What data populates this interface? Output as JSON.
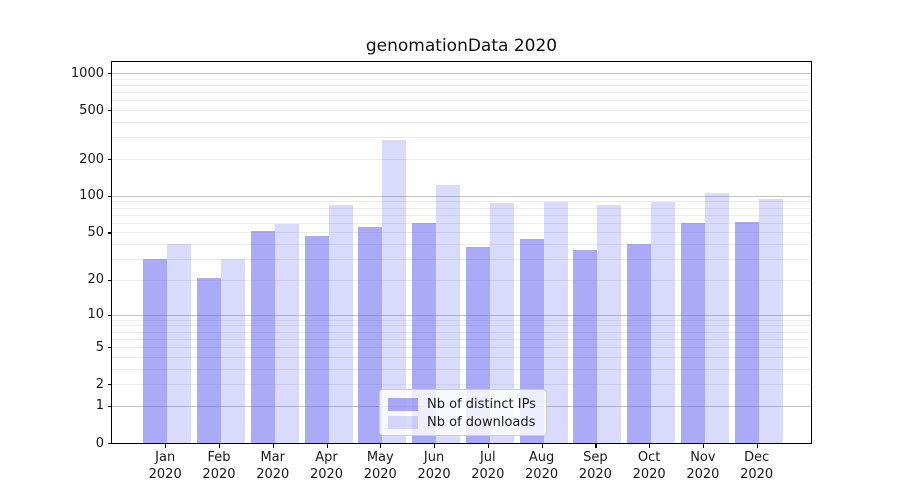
{
  "chart_data": {
    "type": "bar",
    "title": "genomationData 2020",
    "categories": [
      "Jan",
      "Feb",
      "Mar",
      "Apr",
      "May",
      "Jun",
      "Jul",
      "Aug",
      "Sep",
      "Oct",
      "Nov",
      "Dec"
    ],
    "x_year_label": "2020",
    "series": [
      {
        "key": "ips",
        "name": "Nb of distinct IPs",
        "values": [
          30,
          21,
          51,
          47,
          55,
          60,
          38,
          44,
          36,
          40,
          60,
          61
        ]
      },
      {
        "key": "downloads",
        "name": "Nb of downloads",
        "values": [
          40,
          30,
          59,
          85,
          285,
          122,
          87,
          89,
          84,
          89,
          105,
          94
        ]
      }
    ],
    "yscale": "log1p",
    "ylim": [
      0,
      1230
    ],
    "yticks": [
      1000,
      500,
      200,
      100,
      50,
      20,
      10,
      5,
      2,
      1,
      0
    ],
    "grid": {
      "major": [
        1,
        10,
        100,
        1000
      ],
      "minor": [
        2,
        3,
        4,
        5,
        6,
        7,
        8,
        9,
        20,
        30,
        40,
        50,
        60,
        70,
        80,
        90,
        200,
        300,
        400,
        500,
        600,
        700,
        800,
        900
      ]
    },
    "legend_position": "lower center",
    "colors": {
      "bar_ips": "rgba(85,85,240,0.5)",
      "bar_downloads": "rgba(85,85,240,0.22)",
      "grid_major": "#c4c4c4",
      "grid_minor": "#ededed",
      "spine": "#000000",
      "text": "#1a1a1a"
    }
  }
}
